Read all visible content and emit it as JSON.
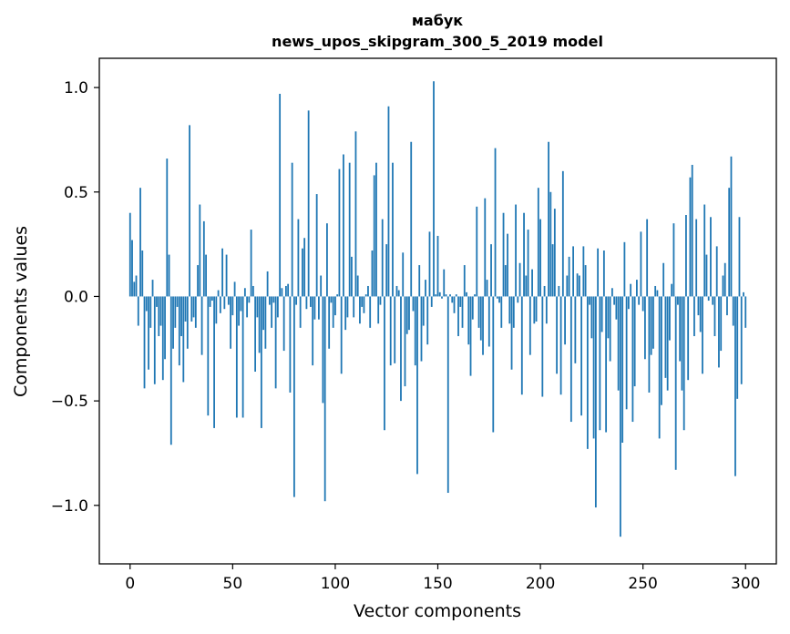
{
  "chart_data": {
    "type": "bar",
    "title": "мабук",
    "subtitle": "news_upos_skipgram_300_5_2019 model",
    "xlabel": "Vector components",
    "ylabel": "Components values",
    "xlim": [
      -15,
      315
    ],
    "ylim": [
      -1.28,
      1.14
    ],
    "xticks": [
      0,
      50,
      100,
      150,
      200,
      250,
      300
    ],
    "xtick_labels": [
      "0",
      "50",
      "100",
      "150",
      "200",
      "250",
      "300"
    ],
    "yticks": [
      -1.0,
      -0.5,
      0.0,
      0.5,
      1.0
    ],
    "ytick_labels": [
      "−1.0",
      "−0.5",
      "0.0",
      "0.5",
      "1.0"
    ],
    "bar_color": "#1f77b4",
    "series": [
      {
        "name": "мабук",
        "values": [
          0.4,
          0.27,
          0.07,
          0.1,
          -0.14,
          0.52,
          0.22,
          -0.44,
          -0.07,
          -0.35,
          -0.15,
          0.08,
          -0.42,
          -0.05,
          -0.19,
          -0.14,
          -0.4,
          -0.3,
          0.66,
          0.2,
          -0.71,
          -0.25,
          -0.15,
          -0.05,
          -0.33,
          -0.19,
          -0.41,
          -0.12,
          -0.25,
          0.82,
          -0.12,
          -0.1,
          -0.15,
          0.15,
          0.44,
          -0.28,
          0.36,
          0.2,
          -0.57,
          -0.05,
          -0.02,
          -0.63,
          -0.13,
          0.03,
          -0.08,
          0.23,
          -0.06,
          0.2,
          -0.04,
          -0.25,
          -0.09,
          0.07,
          -0.58,
          -0.14,
          -0.07,
          -0.58,
          0.04,
          -0.1,
          -0.03,
          0.32,
          0.05,
          -0.36,
          -0.1,
          -0.27,
          -0.63,
          -0.16,
          -0.25,
          0.12,
          -0.04,
          -0.15,
          -0.03,
          -0.44,
          -0.1,
          0.97,
          0.04,
          -0.26,
          0.05,
          0.06,
          -0.46,
          0.64,
          -0.96,
          -0.04,
          0.37,
          -0.15,
          0.23,
          0.28,
          -0.06,
          0.89,
          -0.05,
          -0.33,
          -0.11,
          0.49,
          -0.11,
          0.1,
          -0.51,
          -0.98,
          0.35,
          -0.25,
          -0.03,
          -0.15,
          -0.09,
          0.01,
          0.61,
          -0.37,
          0.68,
          -0.16,
          -0.1,
          0.64,
          0.19,
          -0.1,
          0.79,
          0.1,
          -0.13,
          -0.05,
          -0.08,
          0.01,
          0.05,
          -0.15,
          0.22,
          0.58,
          0.64,
          -0.13,
          -0.04,
          0.37,
          -0.64,
          0.25,
          0.91,
          -0.33,
          0.64,
          -0.32,
          0.05,
          0.03,
          -0.5,
          0.21,
          -0.43,
          -0.18,
          -0.16,
          0.74,
          -0.07,
          -0.33,
          -0.85,
          0.15,
          -0.31,
          -0.14,
          0.08,
          -0.23,
          0.31,
          -0.05,
          1.03,
          0.01,
          0.29,
          0.02,
          -0.01,
          0.13,
          0.01,
          -0.94,
          0.01,
          -0.03,
          -0.08,
          0.01,
          -0.19,
          -0.05,
          -0.15,
          0.15,
          0.02,
          -0.23,
          -0.38,
          -0.11,
          0.01,
          0.43,
          -0.15,
          -0.21,
          -0.28,
          0.47,
          0.08,
          -0.24,
          0.25,
          -0.65,
          0.71,
          -0.01,
          -0.03,
          -0.15,
          0.4,
          0.15,
          0.3,
          -0.13,
          -0.35,
          -0.15,
          0.44,
          -0.03,
          0.16,
          -0.47,
          0.4,
          0.1,
          0.32,
          -0.28,
          0.13,
          -0.13,
          -0.12,
          0.52,
          0.37,
          -0.48,
          0.05,
          -0.13,
          0.74,
          0.5,
          0.25,
          0.42,
          -0.37,
          0.05,
          -0.47,
          0.6,
          -0.23,
          0.1,
          0.19,
          -0.6,
          0.24,
          -0.32,
          0.11,
          0.1,
          -0.57,
          0.24,
          0.15,
          -0.73,
          -0.04,
          -0.2,
          -0.68,
          -1.01,
          0.23,
          -0.64,
          -0.17,
          0.22,
          -0.65,
          -0.2,
          -0.31,
          0.04,
          -0.04,
          -0.11,
          -0.45,
          -1.15,
          -0.7,
          0.26,
          -0.54,
          -0.06,
          0.06,
          -0.6,
          -0.43,
          0.08,
          -0.04,
          0.31,
          -0.07,
          -0.3,
          0.37,
          -0.46,
          -0.28,
          -0.25,
          0.05,
          0.03,
          -0.68,
          -0.52,
          0.16,
          -0.39,
          -0.45,
          -0.21,
          0.06,
          0.35,
          -0.83,
          -0.04,
          -0.31,
          -0.45,
          -0.64,
          0.39,
          -0.4,
          0.57,
          0.63,
          -0.19,
          0.37,
          -0.09,
          -0.17,
          -0.37,
          0.44,
          0.2,
          -0.02,
          0.38,
          -0.04,
          -0.19,
          0.24,
          -0.34,
          -0.26,
          0.1,
          0.16,
          -0.09,
          0.52,
          0.67,
          -0.14,
          -0.86,
          -0.49,
          0.38,
          -0.42,
          0.02,
          -0.15
        ]
      }
    ]
  }
}
